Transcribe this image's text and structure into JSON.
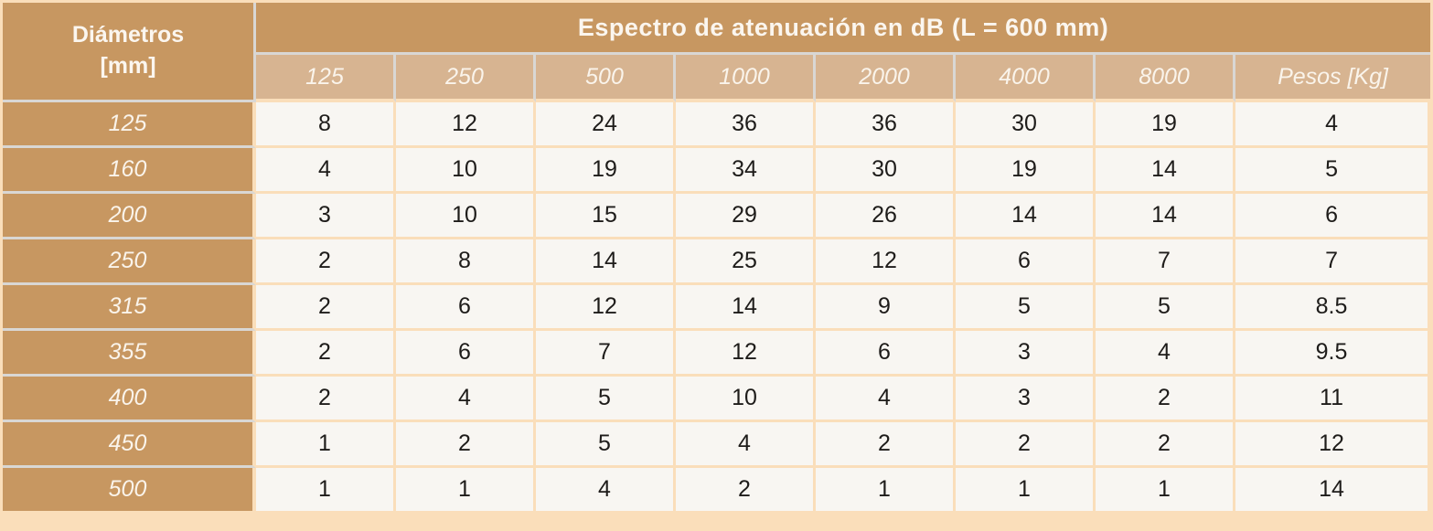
{
  "colors": {
    "tan": "#C79761",
    "light_tan": "#D7B491",
    "cream_cell": "#F8F6F2",
    "peach_border": "#FADEBA",
    "gray_border": "#D9D7D4",
    "header_text": "#FBF6EF",
    "data_text": "#1E1C1A"
  },
  "table": {
    "corner": {
      "line1": "Diámetros",
      "line2": "[mm]"
    }
  },
  "chart_data": {
    "type": "table",
    "title": "Espectro de atenuación en dB (L = 600 mm)",
    "row_header_label": "Diámetros [mm]",
    "columns": [
      "125",
      "250",
      "500",
      "1000",
      "2000",
      "4000",
      "8000",
      "Pesos [Kg]"
    ],
    "rows": [
      {
        "diameter": "125",
        "values": [
          "8",
          "12",
          "24",
          "36",
          "36",
          "30",
          "19",
          "4"
        ]
      },
      {
        "diameter": "160",
        "values": [
          "4",
          "10",
          "19",
          "34",
          "30",
          "19",
          "14",
          "5"
        ]
      },
      {
        "diameter": "200",
        "values": [
          "3",
          "10",
          "15",
          "29",
          "26",
          "14",
          "14",
          "6"
        ]
      },
      {
        "diameter": "250",
        "values": [
          "2",
          "8",
          "14",
          "25",
          "12",
          "6",
          "7",
          "7"
        ]
      },
      {
        "diameter": "315",
        "values": [
          "2",
          "6",
          "12",
          "14",
          "9",
          "5",
          "5",
          "8.5"
        ]
      },
      {
        "diameter": "355",
        "values": [
          "2",
          "6",
          "7",
          "12",
          "6",
          "3",
          "4",
          "9.5"
        ]
      },
      {
        "diameter": "400",
        "values": [
          "2",
          "4",
          "5",
          "10",
          "4",
          "3",
          "2",
          "11"
        ]
      },
      {
        "diameter": "450",
        "values": [
          "1",
          "2",
          "5",
          "4",
          "2",
          "2",
          "2",
          "12"
        ]
      },
      {
        "diameter": "500",
        "values": [
          "1",
          "1",
          "4",
          "2",
          "1",
          "1",
          "1",
          "14"
        ]
      }
    ]
  }
}
